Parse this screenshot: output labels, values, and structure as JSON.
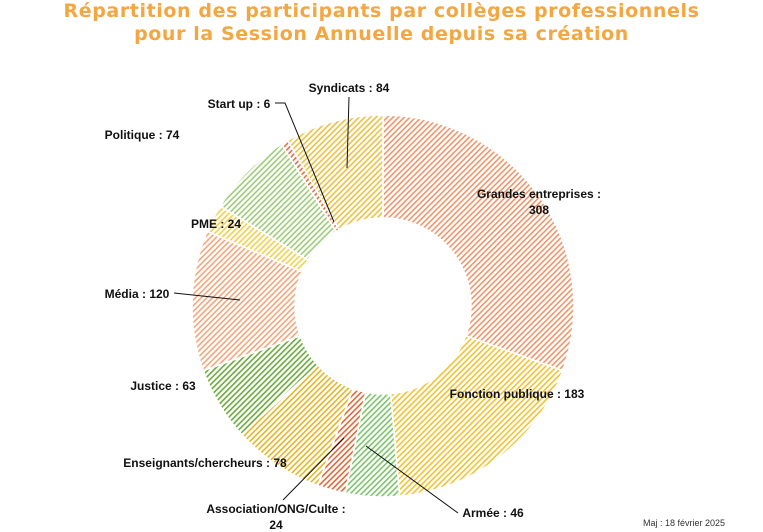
{
  "chart_data": {
    "type": "donut",
    "title": "Répartition des participants par collèges professionnels pour la Session Annuelle depuis sa création",
    "label_separator": " : ",
    "slices": [
      {
        "label": "Grandes entreprises",
        "value": 308,
        "color": "#f0956a"
      },
      {
        "label": "Fonction publique",
        "value": 183,
        "color": "#f2c230"
      },
      {
        "label": "Armée",
        "value": 46,
        "color": "#7cc46a"
      },
      {
        "label": "Association/ONG/Culte",
        "value": 24,
        "color": "#e0683a"
      },
      {
        "label": "Enseignants/chercheurs",
        "value": 78,
        "color": "#e6b424"
      },
      {
        "label": "Justice",
        "value": 63,
        "color": "#6aaa3c"
      },
      {
        "label": "Média",
        "value": 120,
        "color": "#f4a57a"
      },
      {
        "label": "PME",
        "value": 24,
        "color": "#f4d04a"
      },
      {
        "label": "Politique",
        "value": 74,
        "color": "#9ccc78"
      },
      {
        "label": "Start up",
        "value": 6,
        "color": "#e07048"
      },
      {
        "label": "Syndicats",
        "value": 84,
        "color": "#edc040"
      }
    ]
  },
  "footer": {
    "update_note": "Maj : 18 février 2025"
  }
}
